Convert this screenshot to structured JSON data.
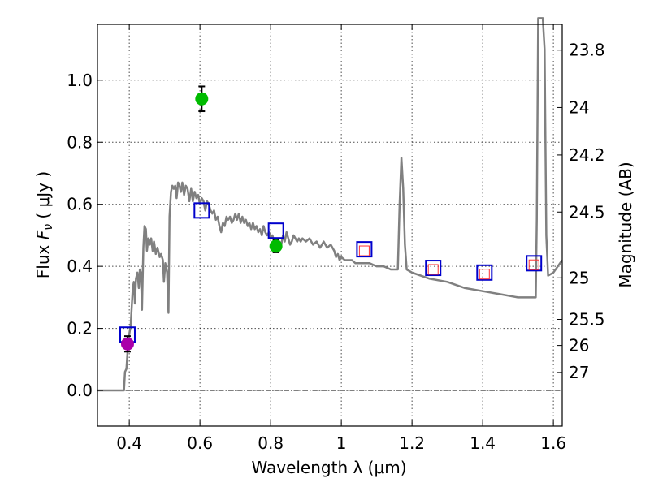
{
  "chart_data": {
    "type": "scatter",
    "xlabel": "Wavelength  λ (μm)",
    "ylabel_prefix": "Flux  ",
    "ylabel_var": "F",
    "ylabel_sub": "ν",
    "ylabel_unit": "  ( μJy )",
    "y2label": "Magnitude (AB)",
    "xlim": [
      0.31,
      1.625
    ],
    "ylim": [
      -0.115,
      1.18
    ],
    "xticks": [
      0.4,
      0.6,
      0.8,
      1.0,
      1.2,
      1.4,
      1.6
    ],
    "xtick_labels": [
      "0.4",
      "0.6",
      "0.8",
      "1",
      "1.2",
      "1.4",
      "1.6"
    ],
    "yticks": [
      0.0,
      0.2,
      0.4,
      0.6,
      0.8,
      1.0
    ],
    "ytick_labels": [
      "0.0",
      "0.2",
      "0.4",
      "0.6",
      "0.8",
      "1.0"
    ],
    "mag_ticks": [
      {
        "label": "23.8",
        "flux": 1.097
      },
      {
        "label": "24",
        "flux": 0.912
      },
      {
        "label": "24.2",
        "flux": 0.759
      },
      {
        "label": "24.5",
        "flux": 0.575
      },
      {
        "label": "25",
        "flux": 0.363
      },
      {
        "label": "25.5",
        "flux": 0.229
      },
      {
        "label": "26",
        "flux": 0.145
      },
      {
        "label": "27",
        "flux": 0.058
      }
    ],
    "zero_line": 0.0,
    "series": [
      {
        "name": "model-sed",
        "kind": "line",
        "color": "#808080",
        "points": [
          [
            0.31,
            0.0
          ],
          [
            0.385,
            0.0
          ],
          [
            0.388,
            0.06
          ],
          [
            0.392,
            0.07
          ],
          [
            0.396,
            0.14
          ],
          [
            0.4,
            0.18
          ],
          [
            0.404,
            0.21
          ],
          [
            0.407,
            0.27
          ],
          [
            0.41,
            0.33
          ],
          [
            0.413,
            0.35
          ],
          [
            0.416,
            0.28
          ],
          [
            0.419,
            0.36
          ],
          [
            0.423,
            0.38
          ],
          [
            0.427,
            0.33
          ],
          [
            0.43,
            0.39
          ],
          [
            0.433,
            0.38
          ],
          [
            0.436,
            0.26
          ],
          [
            0.44,
            0.46
          ],
          [
            0.443,
            0.53
          ],
          [
            0.447,
            0.52
          ],
          [
            0.45,
            0.45
          ],
          [
            0.454,
            0.49
          ],
          [
            0.458,
            0.47
          ],
          [
            0.462,
            0.49
          ],
          [
            0.466,
            0.45
          ],
          [
            0.47,
            0.48
          ],
          [
            0.475,
            0.44
          ],
          [
            0.48,
            0.46
          ],
          [
            0.486,
            0.43
          ],
          [
            0.49,
            0.44
          ],
          [
            0.495,
            0.42
          ],
          [
            0.498,
            0.35
          ],
          [
            0.502,
            0.41
          ],
          [
            0.507,
            0.38
          ],
          [
            0.511,
            0.25
          ],
          [
            0.514,
            0.56
          ],
          [
            0.518,
            0.64
          ],
          [
            0.522,
            0.66
          ],
          [
            0.526,
            0.65
          ],
          [
            0.53,
            0.66
          ],
          [
            0.534,
            0.62
          ],
          [
            0.538,
            0.67
          ],
          [
            0.542,
            0.66
          ],
          [
            0.546,
            0.64
          ],
          [
            0.55,
            0.67
          ],
          [
            0.555,
            0.63
          ],
          [
            0.56,
            0.66
          ],
          [
            0.565,
            0.65
          ],
          [
            0.57,
            0.61
          ],
          [
            0.575,
            0.65
          ],
          [
            0.58,
            0.61
          ],
          [
            0.585,
            0.64
          ],
          [
            0.59,
            0.62
          ],
          [
            0.595,
            0.63
          ],
          [
            0.6,
            0.6
          ],
          [
            0.605,
            0.62
          ],
          [
            0.61,
            0.61
          ],
          [
            0.615,
            0.58
          ],
          [
            0.62,
            0.61
          ],
          [
            0.625,
            0.6
          ],
          [
            0.63,
            0.58
          ],
          [
            0.635,
            0.57
          ],
          [
            0.64,
            0.58
          ],
          [
            0.645,
            0.55
          ],
          [
            0.65,
            0.56
          ],
          [
            0.655,
            0.53
          ],
          [
            0.66,
            0.51
          ],
          [
            0.665,
            0.54
          ],
          [
            0.67,
            0.53
          ],
          [
            0.675,
            0.56
          ],
          [
            0.68,
            0.55
          ],
          [
            0.685,
            0.56
          ],
          [
            0.69,
            0.54
          ],
          [
            0.695,
            0.55
          ],
          [
            0.7,
            0.57
          ],
          [
            0.705,
            0.55
          ],
          [
            0.71,
            0.57
          ],
          [
            0.715,
            0.54
          ],
          [
            0.72,
            0.56
          ],
          [
            0.725,
            0.54
          ],
          [
            0.73,
            0.55
          ],
          [
            0.735,
            0.53
          ],
          [
            0.74,
            0.54
          ],
          [
            0.745,
            0.52
          ],
          [
            0.75,
            0.54
          ],
          [
            0.755,
            0.52
          ],
          [
            0.76,
            0.53
          ],
          [
            0.765,
            0.51
          ],
          [
            0.77,
            0.52
          ],
          [
            0.775,
            0.5
          ],
          [
            0.78,
            0.53
          ],
          [
            0.785,
            0.51
          ],
          [
            0.79,
            0.5
          ],
          [
            0.795,
            0.51
          ],
          [
            0.8,
            0.49
          ],
          [
            0.805,
            0.5
          ],
          [
            0.81,
            0.48
          ],
          [
            0.815,
            0.49
          ],
          [
            0.82,
            0.47
          ],
          [
            0.825,
            0.48
          ],
          [
            0.83,
            0.47
          ],
          [
            0.835,
            0.5
          ],
          [
            0.84,
            0.48
          ],
          [
            0.845,
            0.51
          ],
          [
            0.85,
            0.49
          ],
          [
            0.855,
            0.47
          ],
          [
            0.86,
            0.48
          ],
          [
            0.865,
            0.5
          ],
          [
            0.87,
            0.49
          ],
          [
            0.875,
            0.48
          ],
          [
            0.88,
            0.49
          ],
          [
            0.885,
            0.48
          ],
          [
            0.89,
            0.49
          ],
          [
            0.9,
            0.48
          ],
          [
            0.91,
            0.49
          ],
          [
            0.92,
            0.47
          ],
          [
            0.93,
            0.48
          ],
          [
            0.94,
            0.46
          ],
          [
            0.95,
            0.48
          ],
          [
            0.96,
            0.46
          ],
          [
            0.97,
            0.47
          ],
          [
            0.98,
            0.45
          ],
          [
            0.985,
            0.43
          ],
          [
            0.99,
            0.44
          ],
          [
            0.995,
            0.42
          ],
          [
            1.0,
            0.43
          ],
          [
            1.01,
            0.42
          ],
          [
            1.02,
            0.42
          ],
          [
            1.03,
            0.42
          ],
          [
            1.04,
            0.41
          ],
          [
            1.06,
            0.41
          ],
          [
            1.08,
            0.41
          ],
          [
            1.1,
            0.4
          ],
          [
            1.12,
            0.4
          ],
          [
            1.14,
            0.39
          ],
          [
            1.16,
            0.39
          ],
          [
            1.165,
            0.6
          ],
          [
            1.17,
            0.75
          ],
          [
            1.175,
            0.65
          ],
          [
            1.18,
            0.47
          ],
          [
            1.185,
            0.39
          ],
          [
            1.2,
            0.38
          ],
          [
            1.25,
            0.36
          ],
          [
            1.3,
            0.35
          ],
          [
            1.35,
            0.33
          ],
          [
            1.4,
            0.32
          ],
          [
            1.45,
            0.31
          ],
          [
            1.5,
            0.3
          ],
          [
            1.55,
            0.3
          ],
          [
            1.553,
            0.55
          ],
          [
            1.557,
            1.2
          ],
          [
            1.56,
            1.2
          ],
          [
            1.57,
            1.2
          ],
          [
            1.575,
            1.1
          ],
          [
            1.58,
            0.5
          ],
          [
            1.585,
            0.37
          ],
          [
            1.6,
            0.38
          ],
          [
            1.625,
            0.42
          ]
        ]
      },
      {
        "name": "model-band-flux",
        "kind": "open-square",
        "color": "#0000cc",
        "x": [
          0.395,
          0.605,
          0.815,
          1.065,
          1.26,
          1.405,
          1.545
        ],
        "y": [
          0.18,
          0.58,
          0.515,
          0.455,
          0.395,
          0.38,
          0.41
        ]
      },
      {
        "name": "model-band-flux-inner",
        "kind": "small-square",
        "color": "#ff3333",
        "x": [
          1.065,
          1.26,
          1.405,
          1.545
        ],
        "y": [
          0.45,
          0.39,
          0.375,
          0.405
        ]
      },
      {
        "name": "observed-green",
        "kind": "point",
        "color": "#00bb00",
        "x": [
          0.605,
          0.815
        ],
        "y": [
          0.94,
          0.465
        ],
        "err": [
          0.04,
          0.02
        ]
      },
      {
        "name": "observed-magenta",
        "kind": "point",
        "color": "#aa00aa",
        "x": [
          0.395
        ],
        "y": [
          0.15
        ],
        "err": [
          0.025
        ]
      }
    ]
  }
}
